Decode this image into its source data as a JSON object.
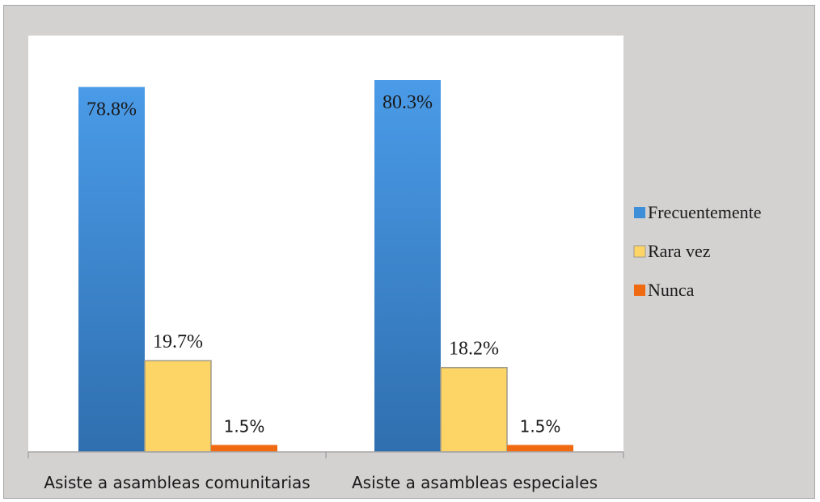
{
  "chart_data": {
    "type": "bar",
    "categories": [
      "Asiste a asambleas comunitarias",
      "Asiste a asambleas especiales"
    ],
    "series": [
      {
        "name": "Frecuentemente",
        "values": [
          78.8,
          80.3
        ],
        "labels": [
          "78.8%",
          "80.3%"
        ],
        "color": "#3f8ed8"
      },
      {
        "name": "Rara vez",
        "values": [
          19.7,
          18.2
        ],
        "labels": [
          "19.7%",
          "18.2%"
        ],
        "color": "#fdd566"
      },
      {
        "name": "Nunca",
        "values": [
          1.5,
          1.5
        ],
        "labels": [
          "1.5%",
          "1.5%"
        ],
        "color": "#f06a12"
      }
    ],
    "ylim": [
      0,
      100
    ],
    "legend_position": "right",
    "grid": false,
    "colors": {
      "frame": "#d4d1d1",
      "plot_area": "#ffffff",
      "axis": "#a6a6a6"
    }
  }
}
